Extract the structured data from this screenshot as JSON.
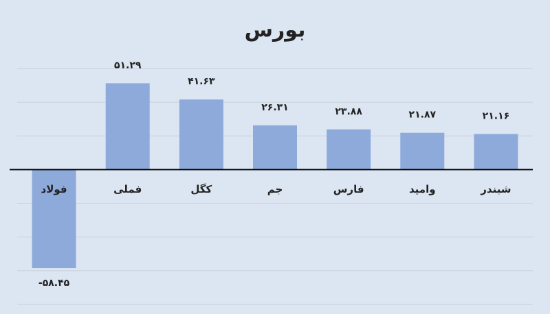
{
  "chart_data": {
    "type": "bar",
    "title": "بورس",
    "categories": [
      "فولاد",
      "فملی",
      "کگل",
      "جم",
      "فارس",
      "وامید",
      "شبندر"
    ],
    "values": [
      -58.45,
      51.29,
      41.63,
      26.31,
      23.88,
      21.87,
      21.16
    ],
    "value_labels": [
      "-۵۸.۴۵",
      "۵۱.۲۹",
      "۴۱.۶۳",
      "۲۶.۳۱",
      "۲۳.۸۸",
      "۲۱.۸۷",
      "۲۱.۱۶"
    ],
    "color": "#8eaadb",
    "ylim": [
      -80,
      60
    ],
    "yticks": [
      -80,
      -60,
      -40,
      -20,
      0,
      20,
      40,
      60
    ],
    "grid": true
  }
}
